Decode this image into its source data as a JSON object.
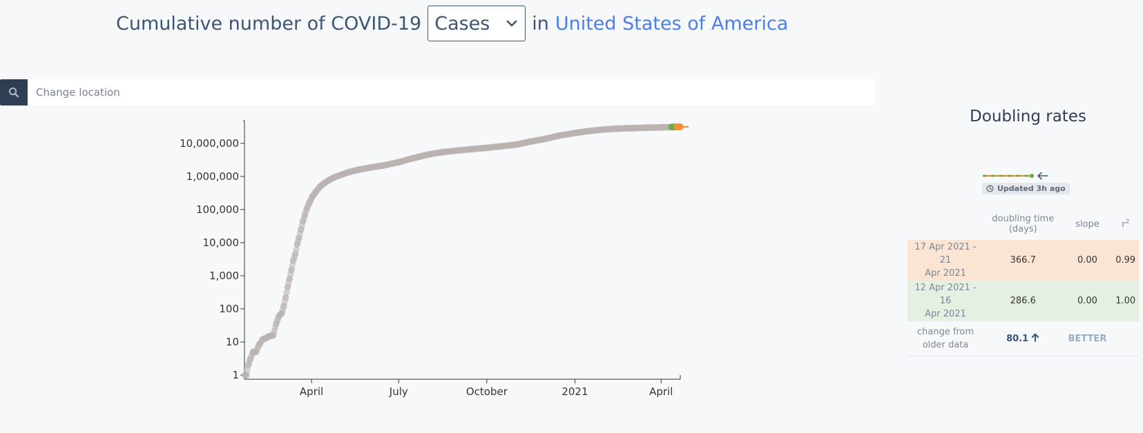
{
  "header": {
    "prefix": "Cumulative number of COVID-19",
    "metric_selected": "Cases",
    "connector": "in",
    "location": "United States of America"
  },
  "search": {
    "placeholder": "Change location"
  },
  "chart_data": {
    "type": "scatter",
    "title": "",
    "xlabel": "",
    "ylabel": "",
    "y_scale": "log",
    "ylim": [
      1,
      30000000
    ],
    "y_ticks": [
      "1",
      "10",
      "100",
      "1,000",
      "10,000",
      "100,000",
      "1,000,000",
      "10,000,000"
    ],
    "x_ticks": [
      "April",
      "July",
      "October",
      "2021",
      "April"
    ],
    "xlim": [
      "2020-01-22",
      "2021-04-21"
    ],
    "series": [
      {
        "color": "#b9b3b0",
        "x": [
          "2020-01-22",
          "2020-01-24",
          "2020-01-26",
          "2020-01-28",
          "2020-01-31",
          "2020-02-03",
          "2020-02-06",
          "2020-02-10",
          "2020-02-13",
          "2020-02-17",
          "2020-02-21",
          "2020-02-24",
          "2020-02-27",
          "2020-03-01",
          "2020-03-03",
          "2020-03-05",
          "2020-03-07",
          "2020-03-09",
          "2020-03-11",
          "2020-03-13",
          "2020-03-15",
          "2020-03-17",
          "2020-03-19",
          "2020-03-21",
          "2020-03-23",
          "2020-03-25",
          "2020-03-27",
          "2020-03-29",
          "2020-03-31",
          "2020-04-02",
          "2020-04-05",
          "2020-04-10",
          "2020-04-15",
          "2020-04-20",
          "2020-04-25",
          "2020-05-01",
          "2020-05-10",
          "2020-05-20",
          "2020-06-01",
          "2020-06-15",
          "2020-07-01",
          "2020-07-15",
          "2020-08-01",
          "2020-08-15",
          "2020-09-01",
          "2020-09-15",
          "2020-10-01",
          "2020-10-15",
          "2020-11-01",
          "2020-11-15",
          "2020-12-01",
          "2020-12-15",
          "2021-01-01",
          "2021-01-15",
          "2021-02-01",
          "2021-02-15",
          "2021-03-01",
          "2021-03-15",
          "2021-04-01",
          "2021-04-11"
        ],
        "y": [
          1,
          1,
          2,
          3,
          5,
          5,
          8,
          12,
          13,
          15,
          16,
          35,
          60,
          75,
          120,
          220,
          450,
          800,
          1500,
          2900,
          4500,
          9000,
          14000,
          25000,
          44000,
          68000,
          105000,
          145000,
          190000,
          250000,
          330000,
          500000,
          650000,
          800000,
          950000,
          1100000,
          1350000,
          1600000,
          1850000,
          2150000,
          2700000,
          3500000,
          4600000,
          5400000,
          6100000,
          6700000,
          7300000,
          8100000,
          9200000,
          11200000,
          13700000,
          17000000,
          20500000,
          23500000,
          26300000,
          27900000,
          28800000,
          29600000,
          30500000,
          31000000
        ]
      },
      {
        "name": "12 Apr 2021 - 16 Apr 2021",
        "color": "#6aa84f",
        "x": [
          "2021-04-12",
          "2021-04-13",
          "2021-04-14",
          "2021-04-15",
          "2021-04-16"
        ],
        "y": [
          31100000,
          31170000,
          31240000,
          31300000,
          31370000
        ]
      },
      {
        "name": "17 Apr 2021 - 21 Apr 2021",
        "color": "#f0923a",
        "x": [
          "2021-04-17",
          "2021-04-18",
          "2021-04-19",
          "2021-04-20",
          "2021-04-21"
        ],
        "y": [
          31430000,
          31480000,
          31540000,
          31600000,
          31660000
        ]
      }
    ]
  },
  "panel": {
    "title": "Doubling rates",
    "updated": "Updated 3h ago",
    "colors": {
      "orange": "#f0923a",
      "green": "#6aa84f"
    },
    "table": {
      "headers": {
        "doubling_time": "doubling time",
        "doubling_unit": "(days)",
        "slope": "slope",
        "r2_base": "r",
        "r2_sup": "2"
      },
      "rows": [
        {
          "period_a": "17 Apr 2021 - 21",
          "period_b": "Apr 2021",
          "doubling": "366.7",
          "slope": "0.00",
          "r2": "0.99"
        },
        {
          "period_a": "12 Apr 2021 - 16",
          "period_b": "Apr 2021",
          "doubling": "286.6",
          "slope": "0.00",
          "r2": "1.00"
        }
      ],
      "change": {
        "label_a": "change from",
        "label_b": "older data",
        "value": "80.1",
        "verdict": "BETTER"
      }
    }
  }
}
